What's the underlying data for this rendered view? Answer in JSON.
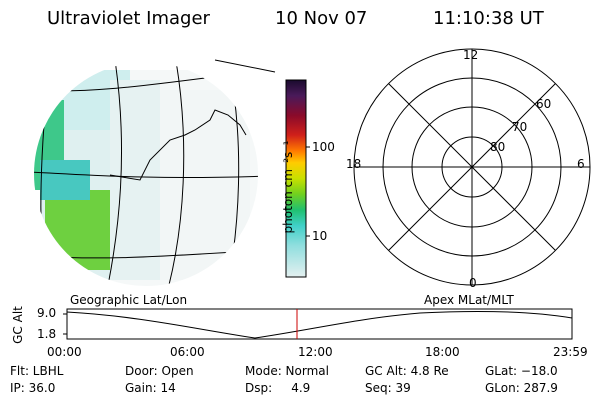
{
  "header": {
    "instrument": "Ultraviolet Imager",
    "date": "10 Nov 07",
    "time": "11:10:38 UT"
  },
  "colorbar": {
    "label": "photon cm⁻²s⁻¹",
    "ticks": [
      "100",
      "10"
    ],
    "scale": "log",
    "colors": [
      "#1a0a2e",
      "#3a1a5a",
      "#6a0a3a",
      "#a0001a",
      "#d0201a",
      "#ff6a00",
      "#ffaa00",
      "#ffdd00",
      "#c0e000",
      "#60d020",
      "#20c060",
      "#40d0c0",
      "#60d8d8",
      "#a0e0e0",
      "#d8eeee"
    ]
  },
  "left_map": {
    "caption": "Geographic Lat/Lon"
  },
  "polar_plot": {
    "caption": "Apex MLat/MLT",
    "mlt_labels": [
      "12",
      "18",
      "6",
      "0"
    ],
    "lat_labels": [
      "60",
      "70",
      "80"
    ]
  },
  "timeline": {
    "axis_title": "GC Alt",
    "y_ticks": [
      "9.0",
      "1.8"
    ],
    "x_ticks": [
      "00:00",
      "06:00",
      "12:00",
      "18:00",
      "23:59"
    ],
    "marker_color": "#cc0000"
  },
  "footer": {
    "filter": "Flt: LBHL",
    "door": "Door: Open",
    "mode": "Mode: Normal",
    "gc_alt": "GC Alt: 4.8 Re",
    "glat": "GLat: −18.0",
    "ip": "IP: 36.0",
    "gain": "Gain: 14",
    "dsp": "Dsp:     4.9",
    "seq": "Seq: 39",
    "glon": "GLon: 287.9"
  }
}
